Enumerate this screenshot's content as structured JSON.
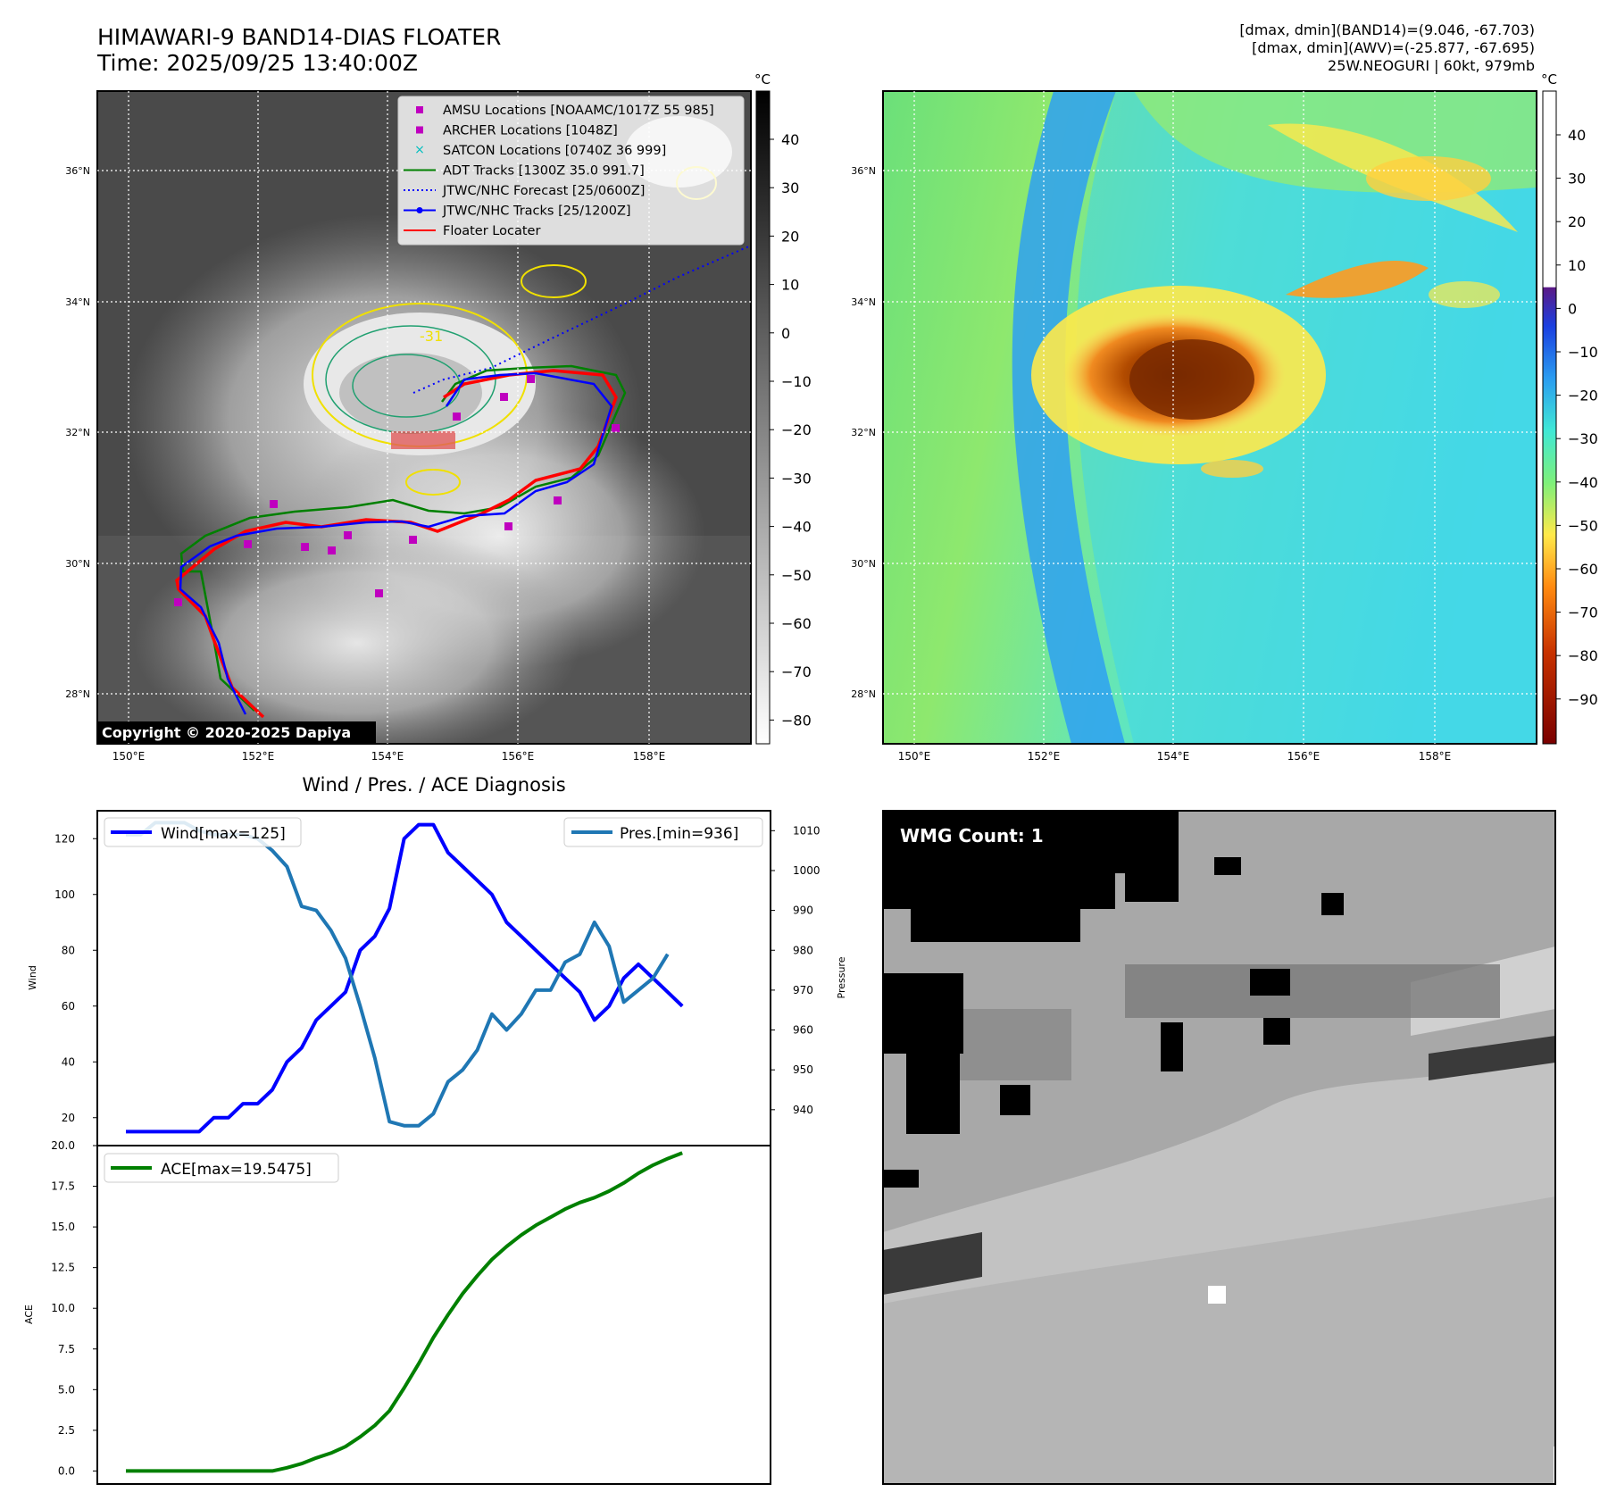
{
  "header": {
    "title_line1": "HIMAWARI-9 BAND14-DIAS FLOATER",
    "title_line2": "Time: 2025/09/25 13:40:00Z",
    "info_line1": "[dmax, dmin](BAND14)=(9.046, -67.703)",
    "info_line2": "[dmax, dmin](AWV)=(-25.877, -67.695)",
    "info_line3": "25W.NEOGURI | 60kt, 979mb"
  },
  "colors": {
    "wind": "#0000ff",
    "pressure": "#1f77b4",
    "ace": "#008000",
    "amsu": "#bf00bf",
    "archer": "#bf00bf",
    "satcon": "#00bfbf",
    "adt": "#008000",
    "jtwc_forecast": "#0000ff",
    "jtwc_tracks": "#0000ff",
    "floater": "#ff0000"
  },
  "maps": {
    "lon_ticks": [
      "150°E",
      "152°E",
      "154°E",
      "156°E",
      "158°E"
    ],
    "lat_ticks": [
      "36°N",
      "34°N",
      "32°N",
      "30°N",
      "28°N"
    ],
    "copyright": "Copyright © 2020-2025 Dapiya",
    "legend": [
      {
        "label": "AMSU Locations [NOAAMC/1017Z 55 985]",
        "marker": "square",
        "color": "#bf00bf"
      },
      {
        "label": "ARCHER Locations [1048Z]",
        "marker": "square",
        "color": "#bf00bf"
      },
      {
        "label": "SATCON Locations [0740Z 36 999]",
        "marker": "x",
        "color": "#00bfbf"
      },
      {
        "label": "ADT Tracks [1300Z 35.0 991.7]",
        "marker": "line",
        "color": "#008000"
      },
      {
        "label": "JTWC/NHC Forecast [25/0600Z]",
        "marker": "dotted",
        "color": "#0000ff"
      },
      {
        "label": "JTWC/NHC Tracks [25/1200Z]",
        "marker": "dotline",
        "color": "#0000ff"
      },
      {
        "label": "Floater Locater",
        "marker": "line",
        "color": "#ff0000"
      }
    ],
    "contour_label": "-31",
    "band14_colorbar": {
      "unit": "°C",
      "ticks": [
        "40",
        "30",
        "20",
        "10",
        "0",
        "−10",
        "−20",
        "−30",
        "−40",
        "−50",
        "−60",
        "−70",
        "−80"
      ]
    },
    "awv_colorbar": {
      "unit": "°C",
      "ticks": [
        "40",
        "30",
        "20",
        "10",
        "0",
        "−10",
        "−20",
        "−30",
        "−40",
        "−50",
        "−60",
        "−70",
        "−80",
        "−90"
      ]
    }
  },
  "wmg": {
    "label": "WMG Count: 1"
  },
  "chart_data": [
    {
      "type": "line",
      "title": "Wind / Pres. / ACE Diagnosis",
      "ylabel": "Wind",
      "ylabel_right": "Pressure",
      "ylim": [
        10,
        130
      ],
      "ylim_right": [
        931,
        1015
      ],
      "yticks": [
        20,
        40,
        60,
        80,
        100,
        120
      ],
      "yticks_right": [
        940,
        950,
        960,
        970,
        980,
        990,
        1000,
        1010
      ],
      "x": [
        0,
        1,
        2,
        3,
        4,
        5,
        6,
        7,
        8,
        9,
        10,
        11,
        12,
        13,
        14,
        15,
        16,
        17,
        18,
        19,
        20,
        21,
        22,
        23,
        24,
        25,
        26,
        27,
        28,
        29,
        30,
        31,
        32,
        33,
        34,
        35,
        36,
        37,
        38,
        39,
        40,
        41,
        42,
        43,
        44,
        45,
        46,
        47,
        48,
        49
      ],
      "series": [
        {
          "name": "Wind[max=125]",
          "axis": "left",
          "values": [
            15,
            15,
            15,
            15,
            15,
            15,
            20,
            20,
            25,
            25,
            30,
            40,
            45,
            55,
            60,
            65,
            80,
            85,
            95,
            120,
            125,
            125,
            115,
            110,
            105,
            100,
            90,
            85,
            80,
            75,
            70,
            65,
            55,
            60,
            70,
            75,
            70,
            65,
            60,
            null,
            null,
            null,
            null,
            null,
            null,
            null,
            null,
            null,
            null,
            null
          ]
        },
        {
          "name": "Pres.[min=936]",
          "axis": "right",
          "values": [
            1009,
            1009,
            1012,
            1012,
            1012,
            1010,
            1009,
            1009,
            1009,
            1008,
            1005,
            1001,
            991,
            990,
            985,
            978,
            966,
            953,
            937,
            936,
            936,
            939,
            947,
            950,
            955,
            964,
            960,
            964,
            970,
            970,
            977,
            979,
            987,
            981,
            967,
            970,
            973,
            979,
            null,
            null,
            null,
            null,
            null,
            null,
            null,
            null,
            null,
            null,
            null,
            null
          ]
        }
      ]
    },
    {
      "type": "area",
      "ylabel": "ACE",
      "ylim": [
        -0.8,
        20
      ],
      "yticks": [
        "0.0",
        "2.5",
        "5.0",
        "7.5",
        "10.0",
        "12.5",
        "15.0",
        "17.5",
        "20.0"
      ],
      "x": [
        0,
        1,
        2,
        3,
        4,
        5,
        6,
        7,
        8,
        9,
        10,
        11,
        12,
        13,
        14,
        15,
        16,
        17,
        18,
        19,
        20,
        21,
        22,
        23,
        24,
        25,
        26,
        27,
        28,
        29,
        30,
        31,
        32,
        33,
        34,
        35,
        36,
        37,
        38
      ],
      "series": [
        {
          "name": "ACE[max=19.5475]",
          "values": [
            0,
            0,
            0,
            0,
            0,
            0,
            0,
            0,
            0,
            0,
            0,
            0.2,
            0.45,
            0.8,
            1.1,
            1.5,
            2.1,
            2.8,
            3.7,
            5.1,
            6.6,
            8.2,
            9.6,
            10.9,
            12.0,
            13.0,
            13.8,
            14.5,
            15.1,
            15.6,
            16.1,
            16.5,
            16.8,
            17.2,
            17.7,
            18.3,
            18.8,
            19.2,
            19.55
          ]
        }
      ]
    }
  ]
}
